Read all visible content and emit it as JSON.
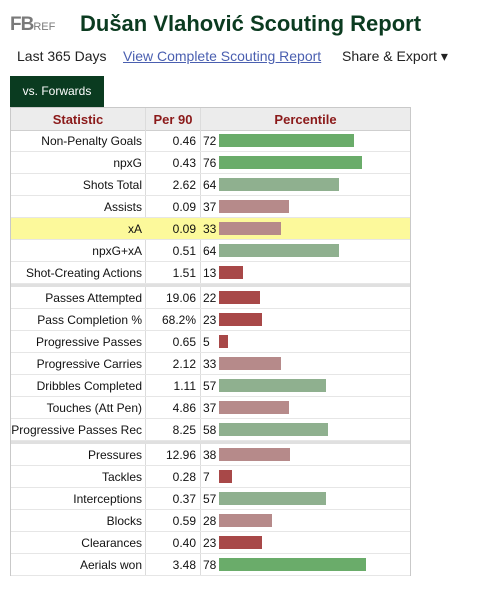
{
  "header": {
    "logo_main": "FB",
    "logo_sub": "REF",
    "title": "Dušan Vlahović Scouting Report"
  },
  "subbar": {
    "range": "Last 365 Days",
    "link": "View Complete Scouting Report",
    "share": "Share & Export ▾"
  },
  "tab": {
    "label": "vs. Forwards"
  },
  "table": {
    "columns": [
      "Statistic",
      "Per 90",
      "Percentile"
    ],
    "colors": {
      "high": "#6aac6a",
      "mid_high": "#8fb08f",
      "mid_low": "#b68a8a",
      "low": "#a84848"
    },
    "groups": [
      [
        {
          "stat": "Non-Penalty Goals",
          "per90": "0.46",
          "pct": 72
        },
        {
          "stat": "npxG",
          "per90": "0.43",
          "pct": 76
        },
        {
          "stat": "Shots Total",
          "per90": "2.62",
          "pct": 64
        },
        {
          "stat": "Assists",
          "per90": "0.09",
          "pct": 37
        },
        {
          "stat": "xA",
          "per90": "0.09",
          "pct": 33,
          "highlight": true
        },
        {
          "stat": "npxG+xA",
          "per90": "0.51",
          "pct": 64
        },
        {
          "stat": "Shot-Creating Actions",
          "per90": "1.51",
          "pct": 13
        }
      ],
      [
        {
          "stat": "Passes Attempted",
          "per90": "19.06",
          "pct": 22
        },
        {
          "stat": "Pass Completion %",
          "per90": "68.2%",
          "pct": 23
        },
        {
          "stat": "Progressive Passes",
          "per90": "0.65",
          "pct": 5
        },
        {
          "stat": "Progressive Carries",
          "per90": "2.12",
          "pct": 33
        },
        {
          "stat": "Dribbles Completed",
          "per90": "1.11",
          "pct": 57
        },
        {
          "stat": "Touches (Att Pen)",
          "per90": "4.86",
          "pct": 37
        },
        {
          "stat": "Progressive Passes Rec",
          "per90": "8.25",
          "pct": 58
        }
      ],
      [
        {
          "stat": "Pressures",
          "per90": "12.96",
          "pct": 38
        },
        {
          "stat": "Tackles",
          "per90": "0.28",
          "pct": 7
        },
        {
          "stat": "Interceptions",
          "per90": "0.37",
          "pct": 57
        },
        {
          "stat": "Blocks",
          "per90": "0.59",
          "pct": 28
        },
        {
          "stat": "Clearances",
          "per90": "0.40",
          "pct": 23
        },
        {
          "stat": "Aerials won",
          "per90": "3.48",
          "pct": 78
        }
      ]
    ]
  }
}
